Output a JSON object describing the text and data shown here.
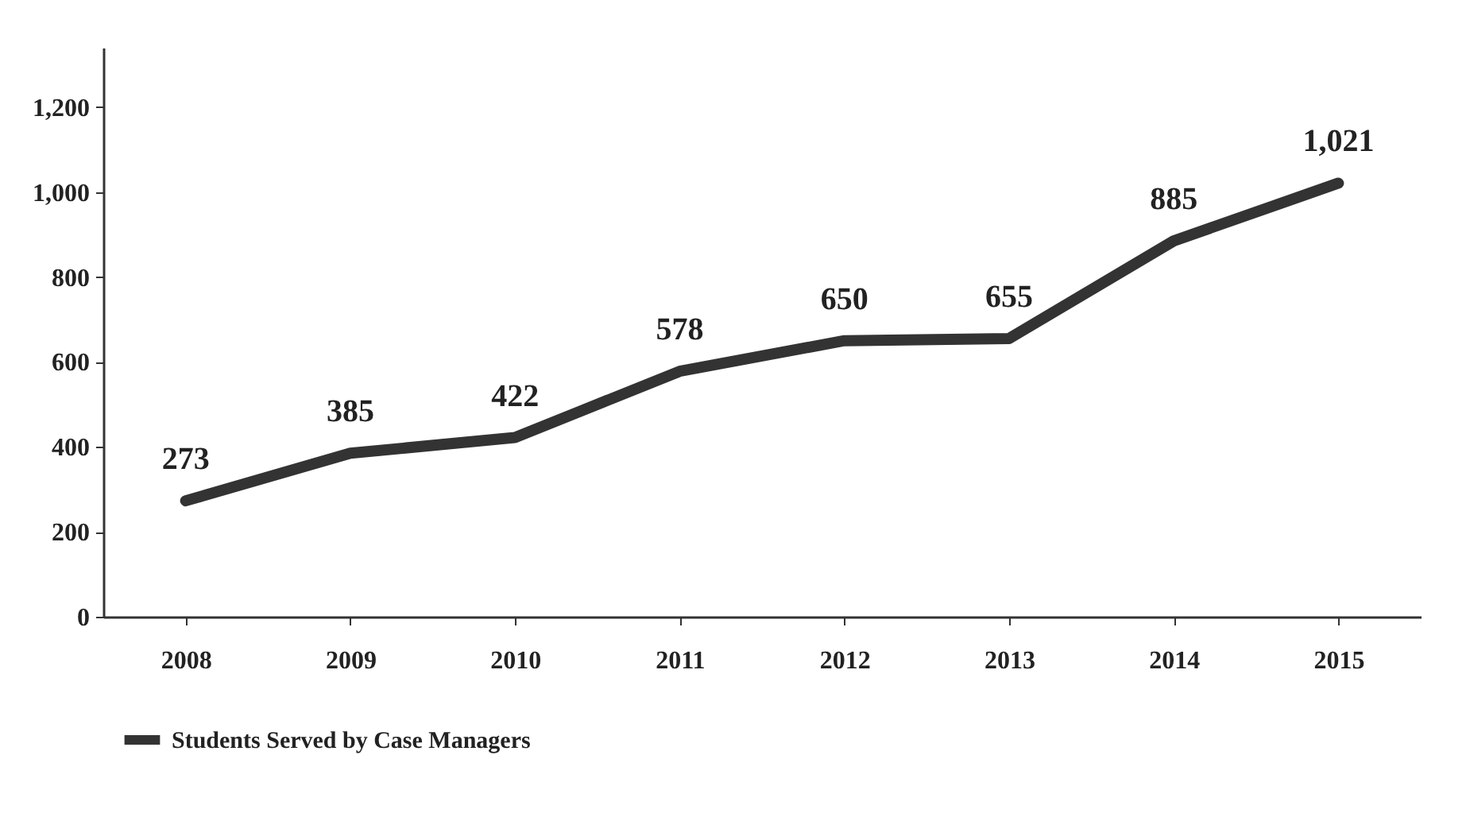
{
  "chart_data": {
    "type": "line",
    "categories": [
      "2008",
      "2009",
      "2010",
      "2011",
      "2012",
      "2013",
      "2014",
      "2015"
    ],
    "series": [
      {
        "name": "Students Served by Case Managers",
        "color": "#333333",
        "values": [
          273,
          385,
          422,
          578,
          650,
          655,
          885,
          1021
        ],
        "value_labels": [
          "273",
          "385",
          "422",
          "578",
          "650",
          "655",
          "885",
          "1,021"
        ]
      }
    ],
    "ylim": [
      0,
      1340
    ],
    "yticks": [
      0,
      200,
      400,
      600,
      800,
      {
        "value": 1000,
        "label": "1,000"
      },
      {
        "value": 1200,
        "label": "1,200"
      }
    ],
    "grid": false,
    "legend": "bottom",
    "marker": "none",
    "line_style": "solid"
  }
}
